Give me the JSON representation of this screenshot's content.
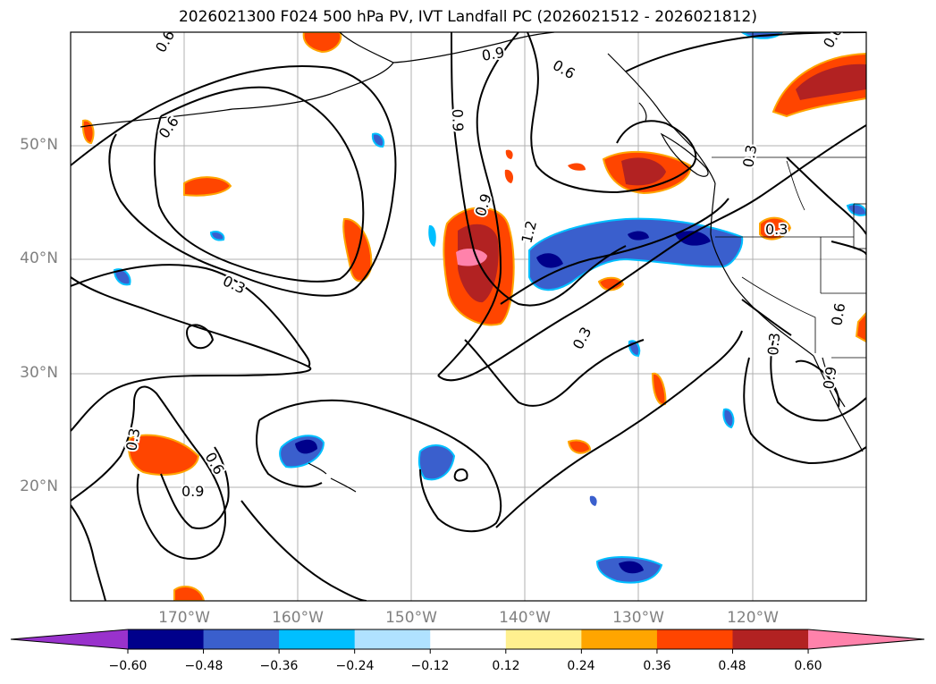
{
  "title": "2026021300 F024 500 hPa PV, IVT Landfall PC (2026021512 - 2026021812)",
  "lat_labels": [
    "50°N",
    "40°N",
    "30°N",
    "20°N"
  ],
  "lon_labels": [
    "170°W",
    "160°W",
    "150°W",
    "140°W",
    "130°W",
    "120°W"
  ],
  "contour_labels": [
    "0.6",
    "0.9",
    "0.6",
    "0.6",
    "0.9",
    "0.9",
    "1.2",
    "0.3",
    "0.3",
    "0.3",
    "0.3",
    "0.6",
    "0.9",
    "0.3",
    "0.6",
    "0.9",
    "0.6",
    "0.3"
  ],
  "colorbar": {
    "ticks": [
      "−0.60",
      "−0.48",
      "−0.36",
      "−0.24",
      "−0.12",
      "0.12",
      "0.24",
      "0.36",
      "0.48",
      "0.60"
    ],
    "colors": [
      "#9932cc",
      "#00008b",
      "#3a5fcd",
      "#00bfff",
      "#b0e2ff",
      "#ffffff",
      "#fff08f",
      "#ffa500",
      "#ff4500",
      "#b22222",
      "#ff82ab"
    ]
  }
}
